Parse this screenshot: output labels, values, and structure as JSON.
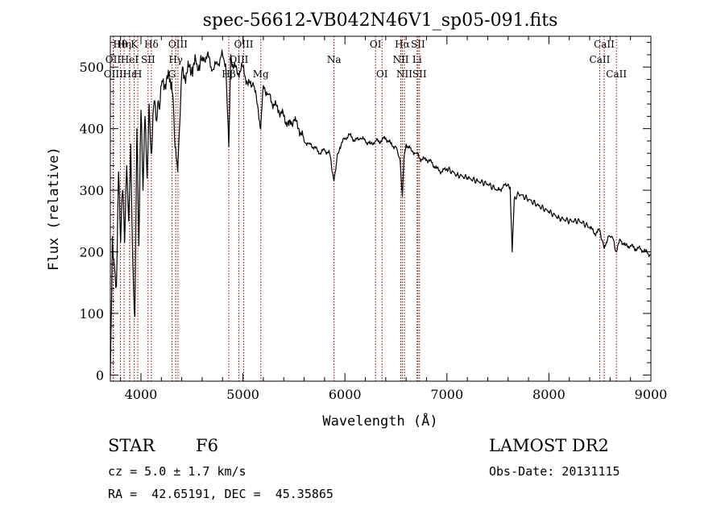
{
  "chart_data": {
    "type": "line",
    "title": "spec-56612-VB042N46V1_sp05-091.fits",
    "xlabel": "Wavelength (Å)",
    "ylabel": "Flux (relative)",
    "xlim": [
      3700,
      9000
    ],
    "ylim": [
      -10,
      550
    ],
    "xticks": [
      4000,
      5000,
      6000,
      7000,
      8000,
      9000
    ],
    "yticks": [
      0,
      100,
      200,
      300,
      400,
      500
    ],
    "series": [
      {
        "x": [
          3700,
          3720,
          3740,
          3760,
          3780,
          3800,
          3820,
          3840,
          3860,
          3880,
          3900,
          3920,
          3940,
          3960,
          3980,
          4000,
          4020,
          4040,
          4060,
          4080,
          4100,
          4130,
          4160,
          4200,
          4250,
          4300,
          4340,
          4360,
          4400,
          4450,
          4500,
          4550,
          4600,
          4650,
          4700,
          4750,
          4800,
          4830,
          4861,
          4880,
          4900,
          4950,
          5000,
          5050,
          5100,
          5150,
          5175,
          5200,
          5250,
          5300,
          5350,
          5400,
          5450,
          5500,
          5550,
          5600,
          5650,
          5700,
          5750,
          5800,
          5850,
          5893,
          5920,
          5950,
          6000,
          6050,
          6100,
          6150,
          6200,
          6250,
          6300,
          6350,
          6400,
          6450,
          6500,
          6540,
          6563,
          6580,
          6600,
          6650,
          6700,
          6750,
          6800,
          6850,
          6900,
          6950,
          7000,
          7100,
          7200,
          7300,
          7400,
          7500,
          7550,
          7600,
          7620,
          7640,
          7660,
          7700,
          7800,
          7900,
          8000,
          8100,
          8200,
          8300,
          8400,
          8450,
          8500,
          8542,
          8580,
          8620,
          8662,
          8700,
          8750,
          8800,
          8850,
          8900,
          8950,
          9000
        ],
        "values": [
          0,
          225,
          175,
          145,
          330,
          215,
          300,
          215,
          340,
          250,
          375,
          180,
          95,
          400,
          210,
          430,
          300,
          420,
          320,
          440,
          360,
          445,
          420,
          470,
          480,
          475,
          370,
          330,
          490,
          490,
          500,
          505,
          510,
          520,
          495,
          505,
          520,
          505,
          370,
          520,
          505,
          490,
          500,
          470,
          475,
          430,
          400,
          470,
          455,
          440,
          430,
          420,
          405,
          415,
          400,
          380,
          375,
          370,
          360,
          365,
          360,
          315,
          350,
          370,
          385,
          390,
          380,
          385,
          380,
          375,
          380,
          380,
          385,
          375,
          370,
          350,
          290,
          355,
          375,
          365,
          360,
          350,
          350,
          345,
          335,
          330,
          335,
          325,
          320,
          315,
          310,
          300,
          305,
          310,
          305,
          200,
          285,
          295,
          285,
          275,
          265,
          255,
          250,
          250,
          240,
          230,
          235,
          205,
          225,
          225,
          200,
          220,
          210,
          210,
          205,
          205,
          200,
          195
        ]
      }
    ],
    "lines": [
      {
        "label": "Hθ",
        "x": 3798,
        "row": 0
      },
      {
        "label": "OII",
        "x": 3727,
        "row": 1
      },
      {
        "label": "OIII",
        "x": 3730,
        "row": 2
      },
      {
        "label": "Hη",
        "x": 3835,
        "row": 0
      },
      {
        "label": "HeI",
        "x": 3889,
        "row": 1
      },
      {
        "label": "Hε",
        "x": 3889,
        "row": 2
      },
      {
        "label": "K",
        "x": 3934,
        "row": 0
      },
      {
        "label": "SII",
        "x": 4070,
        "row": 1
      },
      {
        "label": "H",
        "x": 3969,
        "row": 2
      },
      {
        "label": "Hδ",
        "x": 4102,
        "row": 0
      },
      {
        "label": "OIII",
        "x": 4363,
        "row": 0
      },
      {
        "label": "Hγ",
        "x": 4341,
        "row": 1
      },
      {
        "label": "G",
        "x": 4305,
        "row": 2
      },
      {
        "label": "OIII",
        "x": 5007,
        "row": 0
      },
      {
        "label": "OIII",
        "x": 4959,
        "row": 1
      },
      {
        "label": "Hβ",
        "x": 4861,
        "row": 2
      },
      {
        "label": "Mg",
        "x": 5175,
        "row": 2
      },
      {
        "label": "Na",
        "x": 5893,
        "row": 1
      },
      {
        "label": "OI",
        "x": 6300,
        "row": 0
      },
      {
        "label": "OI",
        "x": 6364,
        "row": 2
      },
      {
        "label": "Hα",
        "x": 6563,
        "row": 0
      },
      {
        "label": "SII",
        "x": 6716,
        "row": 0
      },
      {
        "label": "NII",
        "x": 6548,
        "row": 1
      },
      {
        "label": "Li",
        "x": 6708,
        "row": 1
      },
      {
        "label": "NII",
        "x": 6583,
        "row": 2
      },
      {
        "label": "SII",
        "x": 6731,
        "row": 2
      },
      {
        "label": "CaII",
        "x": 8542,
        "row": 0
      },
      {
        "label": "CaII",
        "x": 8498,
        "row": 1
      },
      {
        "label": "CaII",
        "x": 8662,
        "row": 2
      }
    ],
    "line_color": "#8b0000",
    "grid": false
  },
  "info": {
    "object_class": "STAR",
    "subclass": "F6",
    "survey": "LAMOST DR2",
    "cz": "cz = 5.0 ± 1.7 km/s",
    "obs_date": "Obs-Date: 20131115",
    "coords": "RA =  42.65191, DEC =  45.35865"
  }
}
